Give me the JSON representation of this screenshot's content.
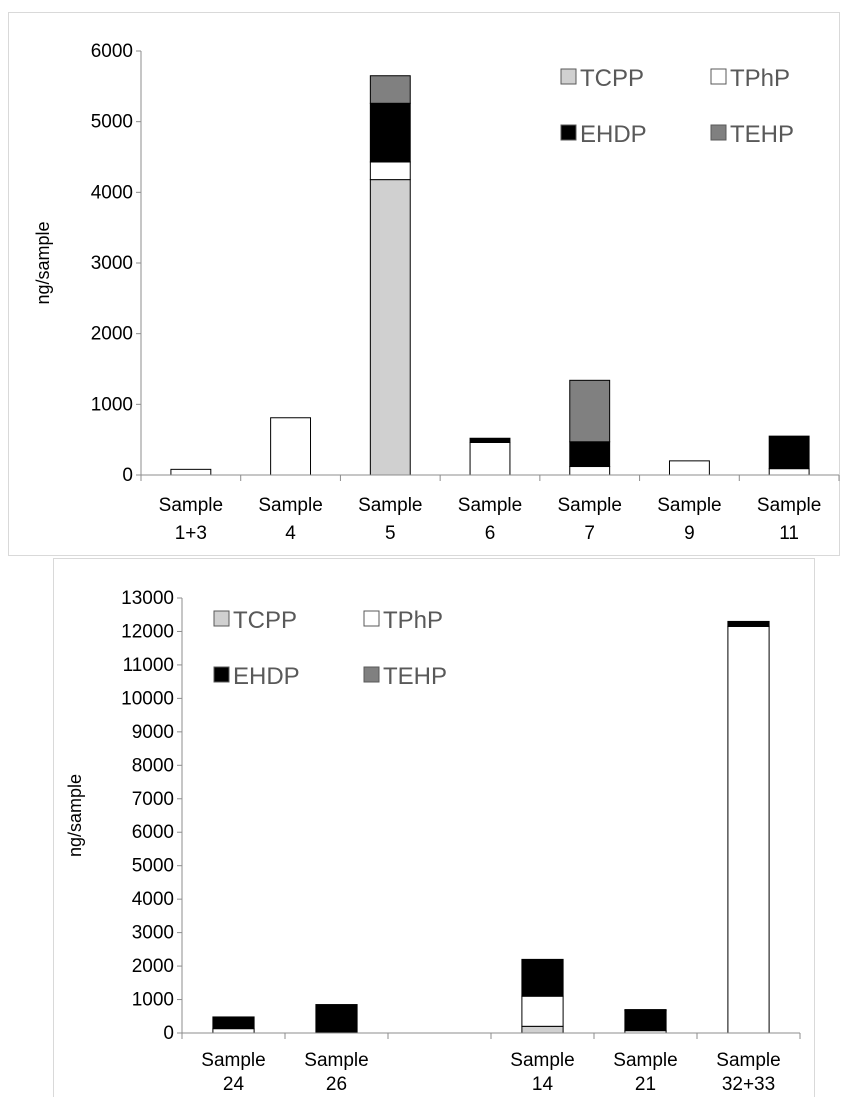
{
  "chart_data": [
    {
      "type": "bar",
      "stacked": true,
      "title": "",
      "xlabel": "",
      "ylabel": "ng/sample",
      "ylim": [
        0,
        6000
      ],
      "yticks": [
        0,
        1000,
        2000,
        3000,
        4000,
        5000,
        6000
      ],
      "y_tick_labels": [
        "0",
        "1000",
        "2000",
        "3000",
        "4000",
        "5000",
        "6000"
      ],
      "categories": [
        [
          "Sample",
          "1+3"
        ],
        [
          "Sample",
          "4"
        ],
        [
          "Sample",
          "5"
        ],
        [
          "Sample",
          "6"
        ],
        [
          "Sample",
          "7"
        ],
        [
          "Sample",
          "9"
        ],
        [
          "Sample",
          "11"
        ]
      ],
      "series": [
        {
          "name": "TCPP",
          "color": "#d0d0d0",
          "values": [
            0,
            0,
            4180,
            0,
            0,
            0,
            0
          ]
        },
        {
          "name": "TPhP",
          "color": "#ffffff",
          "values": [
            80,
            810,
            250,
            460,
            120,
            200,
            90
          ]
        },
        {
          "name": "EHDP",
          "color": "#000000",
          "values": [
            0,
            0,
            830,
            60,
            350,
            0,
            460
          ]
        },
        {
          "name": "TEHP",
          "color": "#808080",
          "values": [
            0,
            0,
            390,
            0,
            870,
            0,
            0
          ]
        }
      ],
      "legend": {
        "position": "top-right",
        "columns": 2,
        "order": [
          "TCPP",
          "TPhP",
          "EHDP",
          "TEHP"
        ]
      },
      "grid": false
    },
    {
      "type": "bar",
      "stacked": true,
      "title": "",
      "xlabel": "",
      "ylabel": "ng/sample",
      "ylim": [
        0,
        13000
      ],
      "yticks": [
        0,
        1000,
        2000,
        3000,
        4000,
        5000,
        6000,
        7000,
        8000,
        9000,
        10000,
        11000,
        12000,
        13000
      ],
      "y_tick_labels": [
        "0",
        "1000",
        "2000",
        "3000",
        "4000",
        "5000",
        "6000",
        "7000",
        "8000",
        "9000",
        "10000",
        "11000",
        "12000",
        "13000"
      ],
      "categories": [
        [
          "Sample",
          "24"
        ],
        [
          "Sample",
          "26"
        ],
        [
          "",
          ""
        ],
        [
          "Sample",
          "14"
        ],
        [
          "Sample",
          "21"
        ],
        [
          "Sample",
          "32+33"
        ]
      ],
      "series": [
        {
          "name": "TCPP",
          "color": "#d0d0d0",
          "values": [
            0,
            0,
            0,
            200,
            0,
            0
          ]
        },
        {
          "name": "TPhP",
          "color": "#ffffff",
          "values": [
            130,
            0,
            0,
            900,
            70,
            12150
          ]
        },
        {
          "name": "EHDP",
          "color": "#000000",
          "values": [
            350,
            850,
            0,
            1100,
            600,
            150
          ]
        },
        {
          "name": "TEHP",
          "color": "#808080",
          "values": [
            0,
            0,
            0,
            0,
            30,
            0
          ]
        }
      ],
      "legend": {
        "position": "top-left",
        "columns": 2,
        "order": [
          "TCPP",
          "TPhP",
          "EHDP",
          "TEHP"
        ]
      },
      "grid": false
    }
  ]
}
